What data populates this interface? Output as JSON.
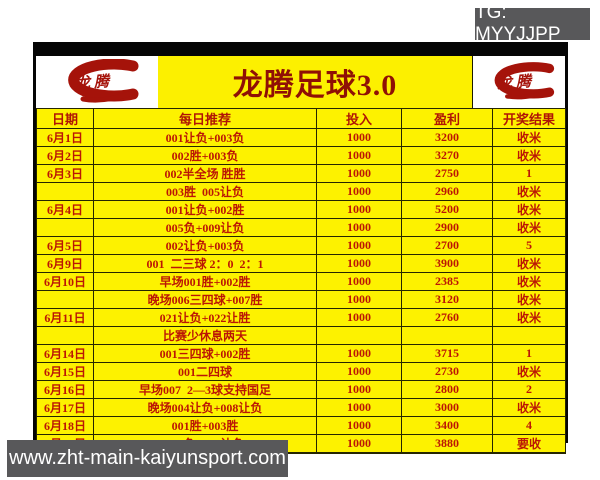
{
  "overlays": {
    "tg_label": "TG: MYYJJPP",
    "site_url": "www.zht-main-kaiyunsport.com"
  },
  "header": {
    "title": "龙腾足球3.0",
    "logo_text": "龙腾"
  },
  "table": {
    "columns": [
      "日期",
      "每日推荐",
      "投入",
      "盈利",
      "开奖结果"
    ],
    "rows": [
      [
        "6月1日",
        "001让负+003负",
        "1000",
        "3200",
        "收米"
      ],
      [
        "6月2日",
        "002胜+003负",
        "1000",
        "3270",
        "收米"
      ],
      [
        "6月3日",
        "002半全场 胜胜",
        "1000",
        "2750",
        "1"
      ],
      [
        "",
        "003胜  005让负",
        "1000",
        "2960",
        "收米"
      ],
      [
        "6月4日",
        "001让负+002胜",
        "1000",
        "5200",
        "收米"
      ],
      [
        "",
        "005负+009让负",
        "1000",
        "2900",
        "收米"
      ],
      [
        "6月5日",
        "002让负+003负",
        "1000",
        "2700",
        "5"
      ],
      [
        "6月9日",
        "001  二三球 2：0  2：1",
        "1000",
        "3900",
        "收米"
      ],
      [
        "6月10日",
        "早场001胜+002胜",
        "1000",
        "2385",
        "收米"
      ],
      [
        "",
        "晚场006三四球+007胜",
        "1000",
        "3120",
        "收米"
      ],
      [
        "6月11日",
        "021让负+022让胜",
        "1000",
        "2760",
        "收米"
      ],
      [
        "",
        "比赛少休息两天",
        "",
        "",
        ""
      ],
      [
        "6月14日",
        "001三四球+002胜",
        "1000",
        "3715",
        "1"
      ],
      [
        "6月15日",
        "001二四球",
        "1000",
        "2730",
        "收米"
      ],
      [
        "6月16日",
        "早场007  2—3球支持国足",
        "1000",
        "2800",
        "2"
      ],
      [
        "6月17日",
        "晚场004让负+008让负",
        "1000",
        "3000",
        "收米"
      ],
      [
        "6月18日",
        "001胜+003胜",
        "1000",
        "3400",
        "4"
      ],
      [
        "6月21日",
        "004负+009让负",
        "1000",
        "3880",
        "要收"
      ],
      [
        "",
        "",
        "",
        "",
        ""
      ]
    ]
  },
  "colors": {
    "table_yellow": "#fdf200",
    "text_red": "#bb1605",
    "title_red": "#8f1005",
    "badge_gray": "#58585a",
    "frame_black": "#050505",
    "logo_red": "#a5130a"
  }
}
